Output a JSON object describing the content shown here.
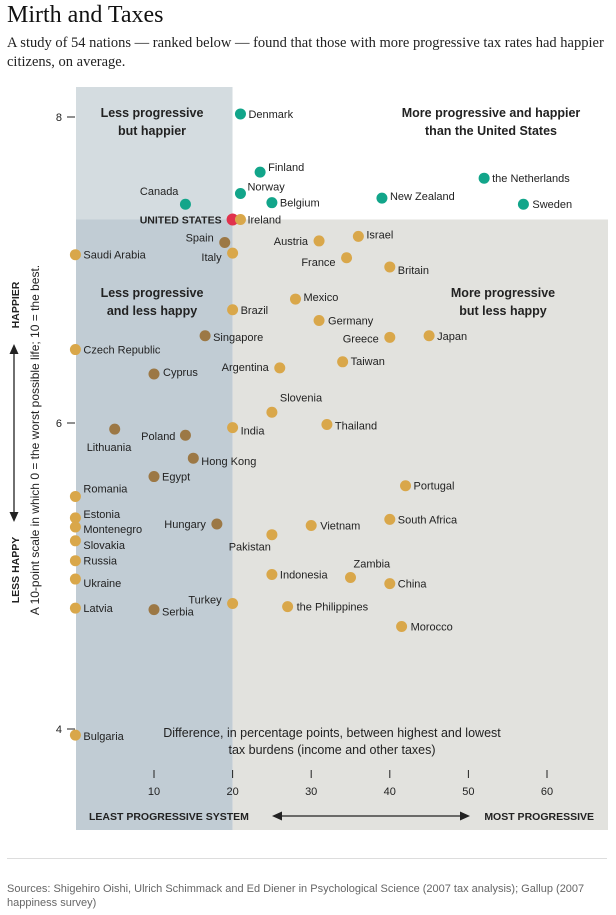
{
  "header": {
    "title": "Mirth and Taxes",
    "subtitle": "A study of 54 nations — ranked below — found that those with more progressive tax rates had happier citizens, on average."
  },
  "colors": {
    "top_left_shade": "#d4dce0",
    "bottom_left_shade": "#c1ccd4",
    "bottom_right_shade": "#e2e2de",
    "top_right_bg": "#ffffff",
    "happier_dot": "#12a58a",
    "usa_dot": "#e0314c",
    "left_dot": "#9c7845",
    "right_dot": "#d9a74a"
  },
  "chart_data": {
    "type": "scatter",
    "xlabel": "Difference, in percentage points, between highest and lowest tax burdens (income and other taxes)",
    "ylabel": "A 10-point scale in which 0 = the worst possible life; 10 = the best.",
    "xlim": [
      0,
      67
    ],
    "ylim": [
      3.35,
      8.25
    ],
    "x_ticks": [
      10,
      20,
      30,
      40,
      50,
      60
    ],
    "y_ticks": [
      4,
      6,
      8
    ],
    "us_reference": {
      "x": 20,
      "y": 7.33
    },
    "quadrant_labels": {
      "top_left": "Less progressive but happier",
      "top_right": "More progressive and happier than the United States",
      "bottom_left": "Less progressive and less happy",
      "bottom_right": "More progressive but less happy"
    },
    "y_axis_labels": {
      "up": "HAPPIER",
      "down": "LESS HAPPY"
    },
    "x_axis_labels": {
      "left": "LEAST PROGRESSIVE SYSTEM",
      "right": "MOST PROGRESSIVE"
    },
    "points": [
      {
        "name": "Denmark",
        "x": 21,
        "y": 8.02
      },
      {
        "name": "Finland",
        "x": 23.5,
        "y": 7.64
      },
      {
        "name": "Norway",
        "x": 21,
        "y": 7.5
      },
      {
        "name": "Belgium",
        "x": 25,
        "y": 7.44
      },
      {
        "name": "New Zealand",
        "x": 39,
        "y": 7.47
      },
      {
        "name": "the Netherlands",
        "x": 52,
        "y": 7.6
      },
      {
        "name": "Sweden",
        "x": 57,
        "y": 7.43
      },
      {
        "name": "Canada",
        "x": 14,
        "y": 7.43
      },
      {
        "name": "UNITED STATES",
        "x": 20,
        "y": 7.33
      },
      {
        "name": "Ireland",
        "x": 21,
        "y": 7.33
      },
      {
        "name": "Spain",
        "x": 19,
        "y": 7.18
      },
      {
        "name": "Italy",
        "x": 20,
        "y": 7.11
      },
      {
        "name": "Saudi Arabia",
        "x": 0,
        "y": 7.1
      },
      {
        "name": "Austria",
        "x": 31,
        "y": 7.19
      },
      {
        "name": "Israel",
        "x": 36,
        "y": 7.22
      },
      {
        "name": "France",
        "x": 34.5,
        "y": 7.08
      },
      {
        "name": "Britain",
        "x": 40,
        "y": 7.02
      },
      {
        "name": "Mexico",
        "x": 28,
        "y": 6.81
      },
      {
        "name": "Brazil",
        "x": 20,
        "y": 6.74
      },
      {
        "name": "Germany",
        "x": 31,
        "y": 6.67
      },
      {
        "name": "Singapore",
        "x": 16.5,
        "y": 6.57
      },
      {
        "name": "Greece",
        "x": 40,
        "y": 6.56
      },
      {
        "name": "Japan",
        "x": 45,
        "y": 6.57
      },
      {
        "name": "Czech Republic",
        "x": 0,
        "y": 6.48
      },
      {
        "name": "Taiwan",
        "x": 34,
        "y": 6.4
      },
      {
        "name": "Argentina",
        "x": 26,
        "y": 6.36
      },
      {
        "name": "Cyprus",
        "x": 10,
        "y": 6.32
      },
      {
        "name": "Slovenia",
        "x": 25,
        "y": 6.07
      },
      {
        "name": "Thailand",
        "x": 32,
        "y": 5.99
      },
      {
        "name": "India",
        "x": 20,
        "y": 5.97
      },
      {
        "name": "Lithuania",
        "x": 5,
        "y": 5.96
      },
      {
        "name": "Poland",
        "x": 14,
        "y": 5.92
      },
      {
        "name": "Hong Kong",
        "x": 15,
        "y": 5.77
      },
      {
        "name": "Egypt",
        "x": 10,
        "y": 5.65
      },
      {
        "name": "Portugal",
        "x": 42,
        "y": 5.59
      },
      {
        "name": "Romania",
        "x": 0,
        "y": 5.52
      },
      {
        "name": "South Africa",
        "x": 40,
        "y": 5.37
      },
      {
        "name": "Hungary",
        "x": 18,
        "y": 5.34
      },
      {
        "name": "Vietnam",
        "x": 30,
        "y": 5.33
      },
      {
        "name": "Estonia",
        "x": 0,
        "y": 5.38
      },
      {
        "name": "Montenegro",
        "x": 0,
        "y": 5.32
      },
      {
        "name": "Pakistan",
        "x": 25,
        "y": 5.27
      },
      {
        "name": "Slovakia",
        "x": 0,
        "y": 5.23
      },
      {
        "name": "Russia",
        "x": 0,
        "y": 5.1
      },
      {
        "name": "Indonesia",
        "x": 25,
        "y": 5.01
      },
      {
        "name": "Zambia",
        "x": 35,
        "y": 4.99
      },
      {
        "name": "Ukraine",
        "x": 0,
        "y": 4.98
      },
      {
        "name": "China",
        "x": 40,
        "y": 4.95
      },
      {
        "name": "Turkey",
        "x": 20,
        "y": 4.82
      },
      {
        "name": "Latvia",
        "x": 0,
        "y": 4.79
      },
      {
        "name": "Serbia",
        "x": 10,
        "y": 4.78
      },
      {
        "name": "the Philippines",
        "x": 27,
        "y": 4.8
      },
      {
        "name": "Morocco",
        "x": 41.5,
        "y": 4.67
      },
      {
        "name": "Bulgaria",
        "x": 0,
        "y": 3.96
      }
    ]
  },
  "footer": {
    "source": "Sources: Shigehiro Oishi, Ulrich Schimmack and Ed Diener in Psychological Science (2007 tax analysis); Gallup (2007 happiness survey)"
  }
}
